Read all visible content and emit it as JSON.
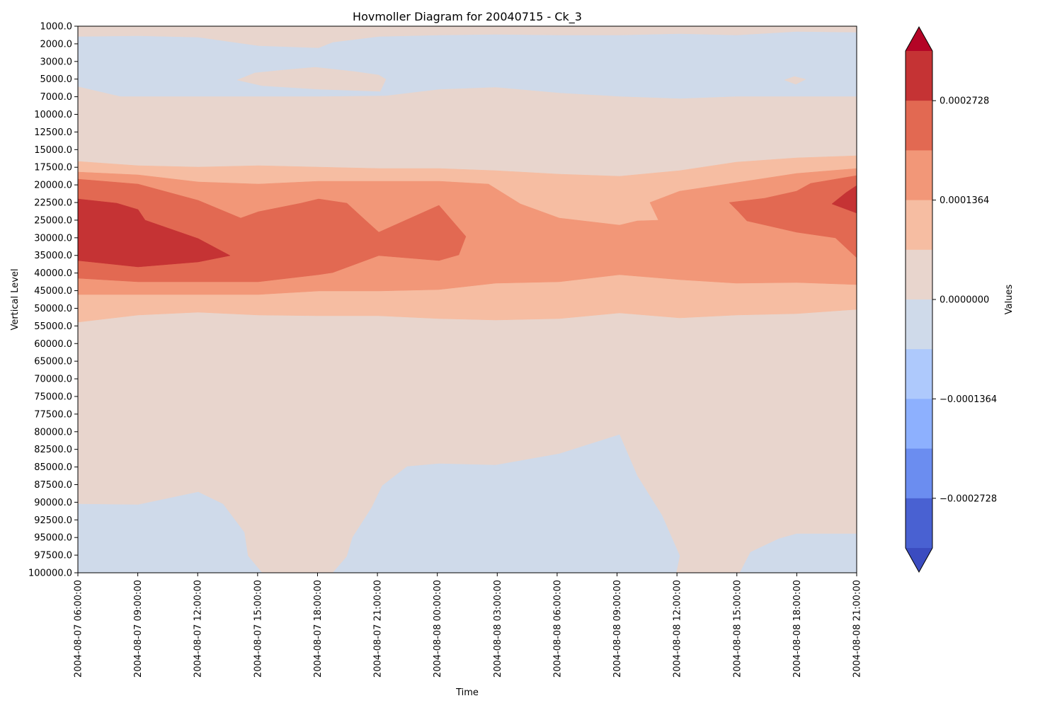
{
  "chart_data": {
    "type": "heatmap",
    "subtype": "filled-contour",
    "title": "Hovmoller Diagram for 20040715 - Ck_3",
    "xlabel": "Time",
    "ylabel": "Vertical Level",
    "colorbar_label": "Values",
    "colormap": "coolwarm",
    "x_ticks": [
      "2004-08-07 06:00:00",
      "2004-08-07 09:00:00",
      "2004-08-07 12:00:00",
      "2004-08-07 15:00:00",
      "2004-08-07 18:00:00",
      "2004-08-07 21:00:00",
      "2004-08-08 00:00:00",
      "2004-08-08 03:00:00",
      "2004-08-08 06:00:00",
      "2004-08-08 09:00:00",
      "2004-08-08 12:00:00",
      "2004-08-08 15:00:00",
      "2004-08-08 18:00:00",
      "2004-08-08 21:00:00"
    ],
    "y_ticks": [
      "1000.0",
      "2000.0",
      "3000.0",
      "5000.0",
      "7000.0",
      "10000.0",
      "12500.0",
      "15000.0",
      "17500.0",
      "20000.0",
      "22500.0",
      "25000.0",
      "30000.0",
      "35000.0",
      "40000.0",
      "45000.0",
      "50000.0",
      "55000.0",
      "60000.0",
      "65000.0",
      "70000.0",
      "75000.0",
      "77500.0",
      "80000.0",
      "82500.0",
      "85000.0",
      "87500.0",
      "90000.0",
      "92500.0",
      "95000.0",
      "97500.0",
      "100000.0"
    ],
    "y_axis_inverted": true,
    "colorbar_ticks": [
      "0.0002728",
      "0.0001364",
      "0.0000000",
      "−0.0001364",
      "−0.0002728"
    ],
    "levels": [
      -0.000341,
      -0.0003069,
      -0.0002728,
      -0.0002387,
      -0.0002046,
      -0.0001705,
      -0.0001364,
      -0.0001023,
      -6.82e-05,
      -3.41e-05,
      0.0,
      3.41e-05,
      6.82e-05,
      0.0001023,
      0.0001364,
      0.0001705,
      0.0002046,
      0.0002387,
      0.0002728,
      0.0003069,
      0.000341
    ],
    "colorbar_colors_top_to_bottom": [
      "#b40426",
      "#c53334",
      "#e26952",
      "#f29778",
      "#f6bda2",
      "#e8d5cd",
      "#cfdaea",
      "#aec9fc",
      "#8db0fe",
      "#6b8df0",
      "#4961d2",
      "#3b4cc0"
    ],
    "extend": "both",
    "bands_top_to_bottom": [
      {
        "level_range": [
          "1000.0",
          "2000.0"
        ],
        "value_class": "0.0000000 to 0.0000682"
      },
      {
        "level_range": [
          "2000.0",
          "7000.0"
        ],
        "value_class": "-0.0000682 to 0.0000000"
      },
      {
        "level_range": [
          "7000.0",
          "17500.0"
        ],
        "value_class": "0.0000000 to 0.0000682"
      },
      {
        "level_range": [
          "17500.0",
          "20000.0"
        ],
        "value_class": "0.0000682 to 0.0001364"
      },
      {
        "level_range": [
          "20000.0",
          "45000.0"
        ],
        "value_class": "0.0001364 to 0.0003069"
      },
      {
        "level_range": [
          "45000.0",
          "55000.0"
        ],
        "value_class": "0.0000682 to 0.0001364"
      },
      {
        "level_range": [
          "55000.0",
          "87500.0"
        ],
        "value_class": "0.0000000 to 0.0000682"
      },
      {
        "level_range": [
          "87500.0",
          "100000.0"
        ],
        "value_class": "-0.0000682 to 0.0000682"
      }
    ]
  }
}
